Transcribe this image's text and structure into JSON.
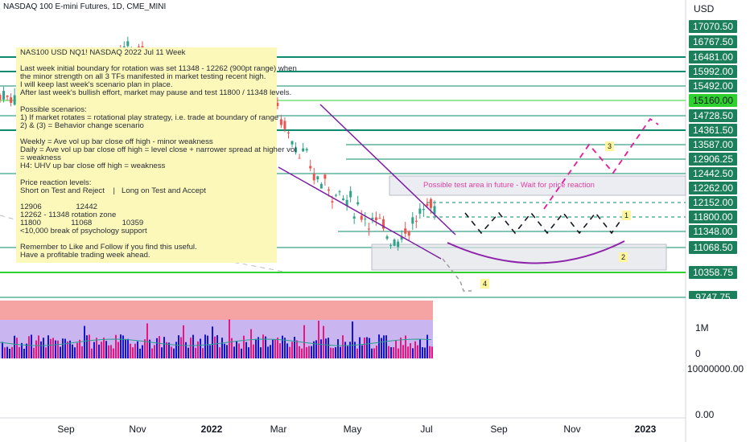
{
  "header": {
    "title": "NASDAQ 100 E-mini Futures, 1D, CME_MINI"
  },
  "note": {
    "lines": [
      "NAS100 USD NQ1! NASDAQ 2022 Jul 11 Week",
      "",
      "Last week initial boundary for rotation was set 11348 - 12262 (900pt range) when",
      "the minor strength on all 3 TFs manifested in market testing recent high.",
      "I will keep last week's scenario plan in place.",
      "After last week's bullish effort, market may pause and test 11800 / 11348 levels.",
      "",
      "Possible scenarios:",
      "1) If market rotates = rotational play strategy, i.e. trade at boundary of range",
      "2) & (3) = Behavior change scenario",
      "",
      "Weekly = Ave vol up bar close off high - minor weakness",
      "Daily = Ave vol up bar close off high = level close + narrower spread at higher vol",
      "= weakness",
      "H4: UHV up bar close off high = weakness",
      "",
      "Price reaction levels:",
      "Short on Test and Reject    |   Long on Test and Accept",
      "",
      "12906                12442",
      "12262 - 11348 rotation zone",
      "11800              11068              10359",
      "<10,000 break of psychology support",
      "",
      "Remember to Like and Follow if you find this useful.",
      "Have a profitable trading week ahead."
    ]
  },
  "annotations": {
    "test_area": "Possible test area in future - Wait for price reaction",
    "scenario_labels": [
      "1",
      "2",
      "3",
      "4"
    ]
  },
  "colors": {
    "level_line": "#0e8a6e",
    "green_line": "#2fd12f",
    "tag": "#1b7f5c",
    "path": "#e6179b",
    "bar_up": "#1414d4",
    "bar_down": "#e8177f",
    "arc": "#8e24aa"
  },
  "chart_data": {
    "type": "line",
    "title": "NASDAQ 100 E-mini Futures, 1D, CME_MINI",
    "yunit": "USD",
    "x_ticks": [
      "Sep",
      "Nov",
      "2022",
      "Mar",
      "May",
      "Jul",
      "Sep",
      "Nov",
      "2023"
    ],
    "price_levels": [
      "17070.50",
      "16767.50",
      "16481.00",
      "15992.00",
      "15492.00",
      "15160.00",
      "14728.50",
      "14361.50",
      "13587.00",
      "12906.25",
      "12442.50",
      "12262.00",
      "12152.00",
      "11800.00",
      "11348.00",
      "11068.50",
      "10358.75",
      "9747.75"
    ],
    "highlighted_level": "15160.00",
    "price_series": [
      {
        "x": "2021-08",
        "y": 15300
      },
      {
        "x": "2021-09",
        "y": 15400
      },
      {
        "x": "2021-10",
        "y": 15500
      },
      {
        "x": "2021-11",
        "y": 16500
      },
      {
        "x": "2021-12",
        "y": 16300
      },
      {
        "x": "2022-01",
        "y": 14700
      },
      {
        "x": "2022-02",
        "y": 14200
      },
      {
        "x": "2022-03",
        "y": 14900
      },
      {
        "x": "2022-04",
        "y": 13000
      },
      {
        "x": "2022-05",
        "y": 12200
      },
      {
        "x": "2022-06",
        "y": 11300
      },
      {
        "x": "2022-07",
        "y": 12300
      }
    ],
    "volume_axis": [
      "1M",
      "0"
    ],
    "lower_axis": [
      "10000000.00",
      "0.00"
    ]
  }
}
